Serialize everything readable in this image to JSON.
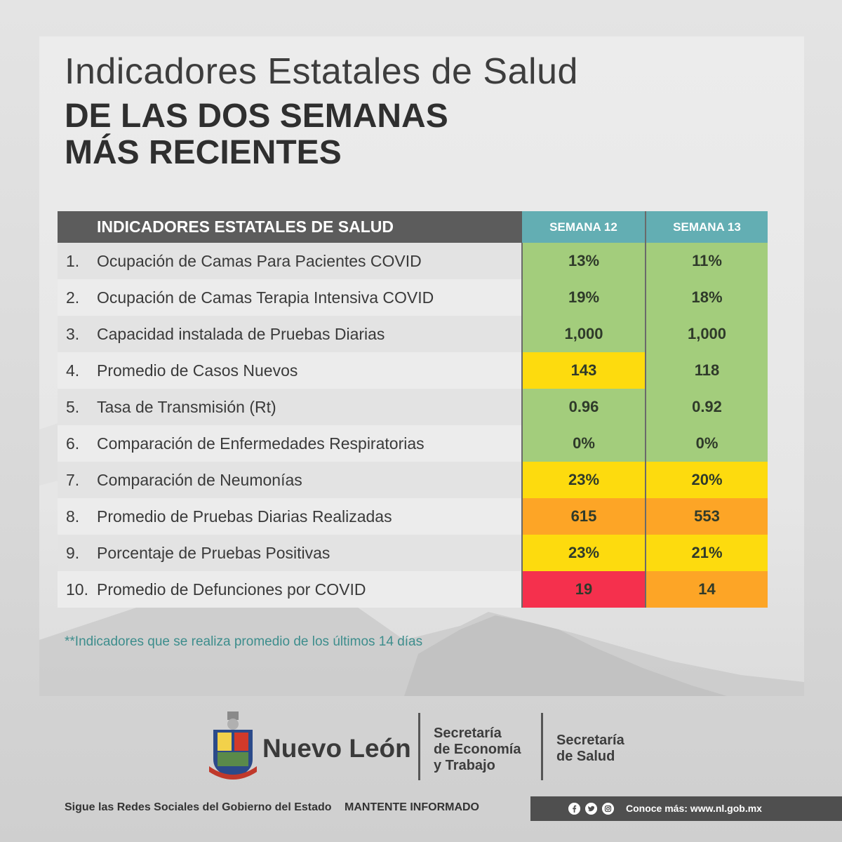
{
  "header": {
    "title_line1": "Indicadores Estatales de Salud",
    "title_line2": "DE LAS DOS SEMANAS",
    "title_line3": "MÁS RECIENTES"
  },
  "table": {
    "header_label": "INDICADORES ESTATALES DE SALUD",
    "week_a": "SEMANA 12",
    "week_b": "SEMANA 13",
    "rows": [
      {
        "num": "1.",
        "label": "Ocupación de Camas Para Pacientes COVID",
        "a": "13%",
        "a_status": "green",
        "b": "11%",
        "b_status": "green"
      },
      {
        "num": "2.",
        "label": "Ocupación de Camas Terapia Intensiva COVID",
        "a": "19%",
        "a_status": "green",
        "b": "18%",
        "b_status": "green"
      },
      {
        "num": "3.",
        "label": "Capacidad instalada de Pruebas Diarias",
        "a": "1,000",
        "a_status": "green",
        "b": "1,000",
        "b_status": "green"
      },
      {
        "num": "4.",
        "label": "Promedio de Casos Nuevos",
        "a": "143",
        "a_status": "yellow",
        "b": "118",
        "b_status": "green"
      },
      {
        "num": "5.",
        "label": "Tasa de Transmisión (Rt)",
        "a": "0.96",
        "a_status": "green",
        "b": "0.92",
        "b_status": "green"
      },
      {
        "num": "6.",
        "label": "Comparación de Enfermedades Respiratorias",
        "a": "0%",
        "a_status": "green",
        "b": "0%",
        "b_status": "green"
      },
      {
        "num": "7.",
        "label": "Comparación de Neumonías",
        "a": "23%",
        "a_status": "yellow",
        "b": "20%",
        "b_status": "yellow"
      },
      {
        "num": "8.",
        "label": "Promedio de Pruebas Diarias Realizadas",
        "a": "615",
        "a_status": "orange",
        "b": "553",
        "b_status": "orange"
      },
      {
        "num": "9.",
        "label": "Porcentaje de Pruebas Positivas",
        "a": "23%",
        "a_status": "yellow",
        "b": "21%",
        "b_status": "yellow"
      },
      {
        "num": "10.",
        "label": "Promedio de Defunciones por COVID",
        "a": "19",
        "a_status": "red",
        "b": "14",
        "b_status": "orange"
      }
    ]
  },
  "colors": {
    "green": "#a3cd7c",
    "yellow": "#fddb0e",
    "orange": "#fda526",
    "red": "#f5304d",
    "header_teal": "#63aeb3",
    "header_gray": "#5c5c5c"
  },
  "footnote": "**Indicadores que se realiza promedio de los últimos 14 días",
  "logos": {
    "state_name": "Nuevo León",
    "sec_economia_l1": "Secretaría",
    "sec_economia_l2": "de Economía",
    "sec_economia_l3": "y Trabajo",
    "sec_salud_l1": "Secretaría",
    "sec_salud_l2": "de Salud"
  },
  "footer": {
    "follow": "Sigue las Redes Sociales del Gobierno del Estado",
    "informed": "MANTENTE INFORMADO",
    "more": "Conoce más: www.nl.gob.mx",
    "social_icons": [
      "facebook-icon",
      "twitter-icon",
      "instagram-icon"
    ]
  }
}
